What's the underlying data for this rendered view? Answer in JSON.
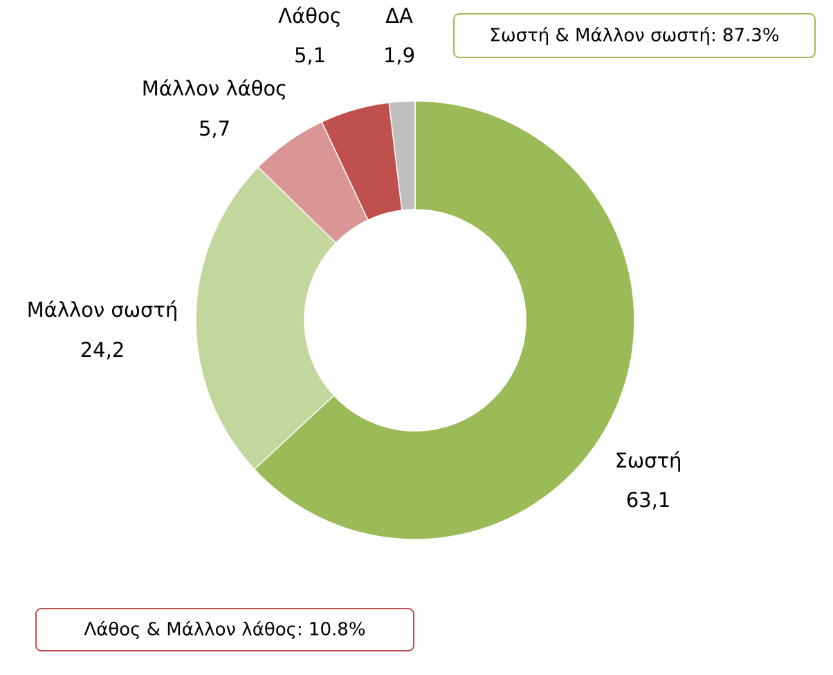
{
  "chart_data": {
    "type": "donut",
    "categories": [
      "Σωστή",
      "Μάλλον σωστή",
      "Μάλλον λάθος",
      "Λάθος",
      "ΔΑ"
    ],
    "values": [
      63.1,
      24.2,
      5.7,
      5.1,
      1.9
    ],
    "value_labels": [
      "63,1",
      "24,2",
      "5,7",
      "5,1",
      "1,9"
    ],
    "colors": [
      "#9bbb59",
      "#c3d69b",
      "#d99694",
      "#c0504d",
      "#bfbfbf"
    ],
    "annotations": [
      "Σωστή & Μάλλον σωστή: 87.3%",
      "Λάθος & Μάλλον λάθος: 10.8%"
    ]
  }
}
